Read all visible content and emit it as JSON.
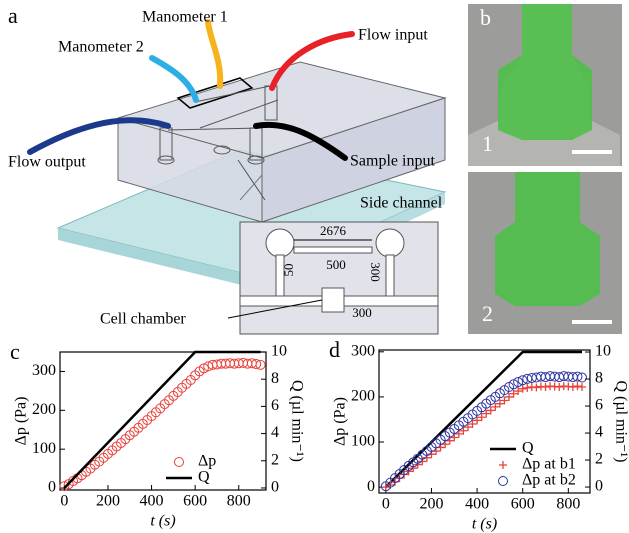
{
  "figure": {
    "panel_a": "a",
    "panel_b": "b",
    "chip_labels": [
      "Manometer 1",
      "Manometer 2",
      "Flow input",
      "Flow output",
      "Sample input"
    ],
    "inset": {
      "title": "Side channel",
      "dims": [
        "2676",
        "500",
        "300",
        "50",
        "300"
      ],
      "chamber": "Cell chamber"
    },
    "image_labels": [
      "1",
      "2"
    ]
  },
  "chart_data": [
    {
      "type": "scatter",
      "panel_label": "c",
      "xlabel": "t (s)",
      "ylabel": "Δp (Pa)",
      "y2label": "Q (µl min⁻¹)",
      "xlim": [
        -20,
        925
      ],
      "ylim": [
        -5,
        350
      ],
      "y2lim": [
        -0.15,
        10
      ],
      "xticks": [
        0,
        200,
        400,
        600,
        800
      ],
      "yticks": [
        0,
        100,
        200,
        300
      ],
      "y2ticks": [
        0,
        2,
        4,
        6,
        8,
        10
      ],
      "legend": "lower right",
      "series": [
        {
          "name": "Δp",
          "color": "#e8413a",
          "marker": "circle",
          "x": [
            0,
            20,
            40,
            60,
            80,
            100,
            120,
            140,
            160,
            180,
            200,
            220,
            240,
            260,
            280,
            300,
            320,
            340,
            360,
            380,
            400,
            420,
            440,
            460,
            480,
            500,
            520,
            540,
            560,
            580,
            600,
            620,
            640,
            660,
            680,
            700,
            720,
            740,
            760,
            780,
            800,
            820,
            840,
            860,
            880,
            900
          ],
          "values": [
            5,
            10,
            18,
            25,
            33,
            42,
            50,
            60,
            68,
            78,
            88,
            97,
            107,
            116,
            126,
            136,
            145,
            155,
            165,
            175,
            185,
            195,
            205,
            216,
            226,
            237,
            247,
            258,
            268,
            278,
            290,
            300,
            308,
            313,
            317,
            318,
            320,
            320,
            321,
            320,
            321,
            322,
            320,
            321,
            319,
            317
          ]
        },
        {
          "name": "Q",
          "color": "#000000",
          "marker": "line",
          "axis": "y2",
          "x": [
            0,
            600,
            900
          ],
          "values": [
            0,
            10,
            10
          ]
        }
      ]
    },
    {
      "type": "scatter",
      "panel_label": "d",
      "xlabel": "t (s)",
      "ylabel": "Δp (Pa)",
      "y2label": "Q (µl min⁻¹)",
      "xlim": [
        -30,
        895
      ],
      "ylim": [
        -13,
        304
      ],
      "y2lim": [
        -0.44,
        10.15
      ],
      "xticks": [
        0,
        200,
        400,
        600,
        800
      ],
      "yticks": [
        0,
        100,
        200,
        300
      ],
      "y2ticks": [
        0,
        2,
        4,
        6,
        8,
        10
      ],
      "legend": "lower right",
      "series": [
        {
          "name": "Q",
          "color": "#000000",
          "marker": "line",
          "axis": "y2",
          "x": [
            0,
            600,
            860
          ],
          "values": [
            0,
            10,
            10
          ]
        },
        {
          "name": "Δp at b1",
          "color": "#e8413a",
          "marker": "plus",
          "x": [
            0,
            20,
            40,
            60,
            80,
            100,
            120,
            140,
            160,
            180,
            200,
            220,
            240,
            260,
            280,
            300,
            320,
            340,
            360,
            380,
            400,
            420,
            440,
            460,
            480,
            500,
            520,
            540,
            560,
            580,
            600,
            620,
            640,
            660,
            680,
            700,
            720,
            740,
            760,
            780,
            800,
            820,
            840,
            860
          ],
          "values": [
            0,
            5,
            12,
            20,
            28,
            35,
            42,
            50,
            57,
            65,
            73,
            80,
            88,
            95,
            103,
            110,
            118,
            125,
            133,
            140,
            148,
            155,
            163,
            170,
            178,
            185,
            192,
            200,
            207,
            213,
            218,
            220,
            222,
            221,
            223,
            222,
            224,
            223,
            222,
            224,
            223,
            222,
            224,
            222
          ]
        },
        {
          "name": "Δp at b2",
          "color": "#2e35a0",
          "marker": "circle",
          "x": [
            0,
            20,
            40,
            60,
            80,
            100,
            120,
            140,
            160,
            180,
            200,
            220,
            240,
            260,
            280,
            300,
            320,
            340,
            360,
            380,
            400,
            420,
            440,
            460,
            480,
            500,
            520,
            540,
            560,
            580,
            600,
            620,
            640,
            660,
            680,
            700,
            720,
            740,
            760,
            780,
            800,
            820,
            840,
            860
          ],
          "values": [
            2,
            10,
            20,
            29,
            38,
            47,
            55,
            63,
            72,
            80,
            89,
            97,
            105,
            113,
            121,
            129,
            137,
            145,
            153,
            161,
            169,
            177,
            185,
            193,
            200,
            208,
            215,
            222,
            228,
            233,
            237,
            240,
            242,
            243,
            245,
            244,
            246,
            245,
            244,
            246,
            245,
            244,
            245,
            243
          ]
        }
      ]
    }
  ]
}
